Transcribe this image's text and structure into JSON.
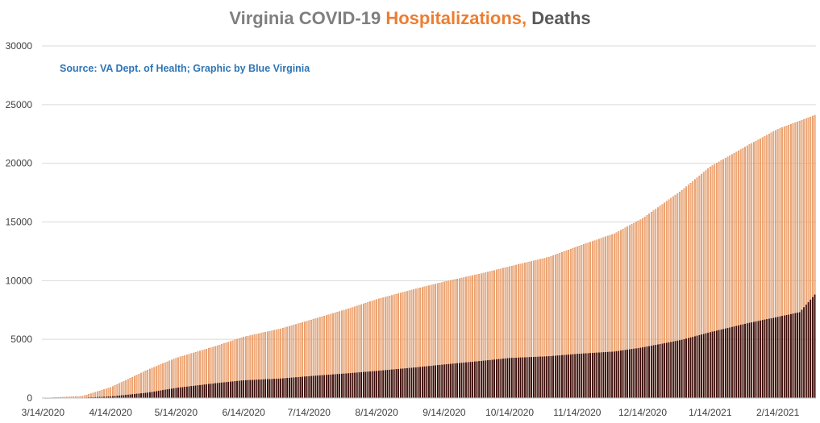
{
  "title": {
    "part1": "Virginia COVID-19 ",
    "part2": "Hospitalizations,",
    "part3": " Deaths",
    "color1": "#7f7f7f",
    "color2": "#ed7d31",
    "color3": "#595959"
  },
  "source_text": "Source: VA Dept. of Health; Graphic by Blue Virginia",
  "source_color": "#2e75b6",
  "chart_data": {
    "type": "bar",
    "ylim": [
      0,
      30000
    ],
    "y_ticks": [
      0,
      5000,
      10000,
      15000,
      20000,
      25000,
      30000
    ],
    "x_tick_labels": [
      "3/14/2020",
      "4/14/2020",
      "5/14/2020",
      "6/14/2020",
      "7/14/2020",
      "8/14/2020",
      "9/14/2020",
      "10/14/2020",
      "11/14/2020",
      "12/14/2020",
      "1/14/2021",
      "2/14/2021"
    ],
    "x_range": [
      "3/14/2020",
      "3/3/2021"
    ],
    "grid": true,
    "overlap": true,
    "series": [
      {
        "name": "Hospitalizations",
        "color": "#f4b183",
        "stroke": "#c55a11",
        "values": [
          {
            "date": "3/14/2020",
            "value": 0
          },
          {
            "date": "4/1/2020",
            "value": 150
          },
          {
            "date": "4/14/2020",
            "value": 900
          },
          {
            "date": "5/1/2020",
            "value": 2400
          },
          {
            "date": "5/14/2020",
            "value": 3400
          },
          {
            "date": "6/1/2020",
            "value": 4400
          },
          {
            "date": "6/14/2020",
            "value": 5200
          },
          {
            "date": "7/1/2020",
            "value": 5900
          },
          {
            "date": "7/14/2020",
            "value": 6600
          },
          {
            "date": "8/1/2020",
            "value": 7600
          },
          {
            "date": "8/14/2020",
            "value": 8400
          },
          {
            "date": "9/1/2020",
            "value": 9300
          },
          {
            "date": "9/14/2020",
            "value": 9900
          },
          {
            "date": "10/1/2020",
            "value": 10600
          },
          {
            "date": "10/14/2020",
            "value": 11200
          },
          {
            "date": "11/1/2020",
            "value": 12000
          },
          {
            "date": "11/14/2020",
            "value": 12900
          },
          {
            "date": "12/1/2020",
            "value": 14000
          },
          {
            "date": "12/14/2020",
            "value": 15300
          },
          {
            "date": "1/1/2021",
            "value": 17700
          },
          {
            "date": "1/14/2021",
            "value": 19700
          },
          {
            "date": "2/1/2021",
            "value": 21600
          },
          {
            "date": "2/14/2021",
            "value": 22900
          },
          {
            "date": "3/3/2021",
            "value": 24100
          }
        ]
      },
      {
        "name": "Deaths",
        "color": "#3b0a0a",
        "stroke": "#1a0000",
        "values": [
          {
            "date": "3/14/2020",
            "value": 0
          },
          {
            "date": "4/1/2020",
            "value": 20
          },
          {
            "date": "4/14/2020",
            "value": 120
          },
          {
            "date": "5/1/2020",
            "value": 450
          },
          {
            "date": "5/14/2020",
            "value": 850
          },
          {
            "date": "6/1/2020",
            "value": 1250
          },
          {
            "date": "6/14/2020",
            "value": 1500
          },
          {
            "date": "7/1/2020",
            "value": 1650
          },
          {
            "date": "7/14/2020",
            "value": 1850
          },
          {
            "date": "8/1/2020",
            "value": 2100
          },
          {
            "date": "8/14/2020",
            "value": 2300
          },
          {
            "date": "9/1/2020",
            "value": 2600
          },
          {
            "date": "9/14/2020",
            "value": 2850
          },
          {
            "date": "10/1/2020",
            "value": 3150
          },
          {
            "date": "10/14/2020",
            "value": 3400
          },
          {
            "date": "11/1/2020",
            "value": 3550
          },
          {
            "date": "11/14/2020",
            "value": 3750
          },
          {
            "date": "12/1/2020",
            "value": 3950
          },
          {
            "date": "12/14/2020",
            "value": 4300
          },
          {
            "date": "1/1/2021",
            "value": 4950
          },
          {
            "date": "1/14/2021",
            "value": 5600
          },
          {
            "date": "2/1/2021",
            "value": 6400
          },
          {
            "date": "2/14/2021",
            "value": 6900
          },
          {
            "date": "2/24/2021",
            "value": 7300
          },
          {
            "date": "3/3/2021",
            "value": 8800
          }
        ]
      }
    ]
  }
}
